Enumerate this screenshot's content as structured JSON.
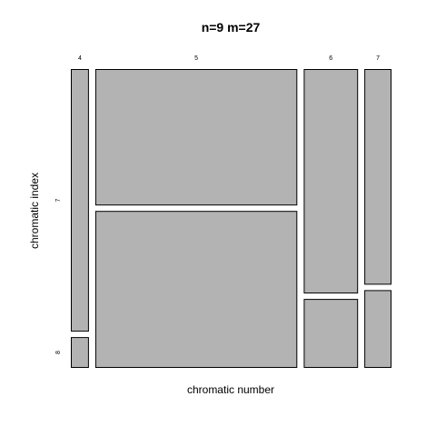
{
  "chart_data": {
    "type": "mosaic",
    "title": "n=9 m=27",
    "xlabel": "chromatic number",
    "ylabel": "chromatic index",
    "columns": [
      {
        "label": "4",
        "fraction": 0.06,
        "segments": [
          {
            "label": "7",
            "fraction": 0.895
          },
          {
            "label": "8",
            "fraction": 0.105
          }
        ]
      },
      {
        "label": "5",
        "fraction": 0.67,
        "segments": [
          {
            "label": "7",
            "fraction": 0.465
          },
          {
            "label": "8",
            "fraction": 0.535
          }
        ]
      },
      {
        "label": "6",
        "fraction": 0.18,
        "segments": [
          {
            "label": "7",
            "fraction": 0.765
          },
          {
            "label": "8",
            "fraction": 0.235
          }
        ]
      },
      {
        "label": "7",
        "fraction": 0.09,
        "segments": [
          {
            "label": "7",
            "fraction": 0.735
          },
          {
            "label": "8",
            "fraction": 0.265
          }
        ]
      }
    ],
    "row_labels": [
      "7",
      "8"
    ],
    "fill_color": "#b3b3b3",
    "stroke_color": "#000000",
    "background": "#ffffff"
  }
}
